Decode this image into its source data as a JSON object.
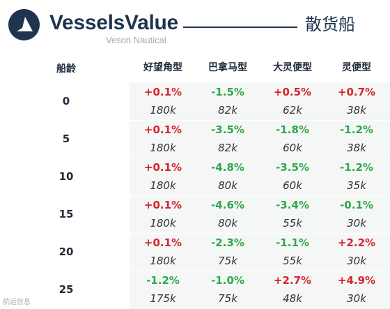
{
  "header": {
    "brand": "VesselsValue",
    "tagline": "Veson Nautical",
    "category": "散货船"
  },
  "table": {
    "age_header": "船龄",
    "columns": [
      "好望角型",
      "巴拿马型",
      "大灵便型",
      "灵便型"
    ],
    "rows": [
      {
        "age": "0",
        "changes": [
          "+0.1%",
          "-1.5%",
          "+0.5%",
          "+0.7%"
        ],
        "values": [
          "180k",
          "82k",
          "62k",
          "38k"
        ]
      },
      {
        "age": "5",
        "changes": [
          "+0.1%",
          "-3.5%",
          "-1.8%",
          "-1.2%"
        ],
        "values": [
          "180k",
          "82k",
          "60k",
          "38k"
        ]
      },
      {
        "age": "10",
        "changes": [
          "+0.1%",
          "-4.8%",
          "-3.5%",
          "-1.2%"
        ],
        "values": [
          "180k",
          "80k",
          "60k",
          "35k"
        ]
      },
      {
        "age": "15",
        "changes": [
          "+0.1%",
          "-4.6%",
          "-3.4%",
          "-0.1%"
        ],
        "values": [
          "180k",
          "80k",
          "55k",
          "30k"
        ]
      },
      {
        "age": "20",
        "changes": [
          "+0.1%",
          "-2.3%",
          "-1.1%",
          "+2.2%"
        ],
        "values": [
          "180k",
          "75k",
          "55k",
          "30k"
        ]
      },
      {
        "age": "25",
        "changes": [
          "-1.2%",
          "-1.0%",
          "+2.7%",
          "+4.9%"
        ],
        "values": [
          "175k",
          "75k",
          "48k",
          "30k"
        ]
      }
    ]
  },
  "colors": {
    "positive": "#d6242f",
    "negative": "#2ea84a",
    "brand": "#1f3451"
  },
  "watermark": "航运信息"
}
